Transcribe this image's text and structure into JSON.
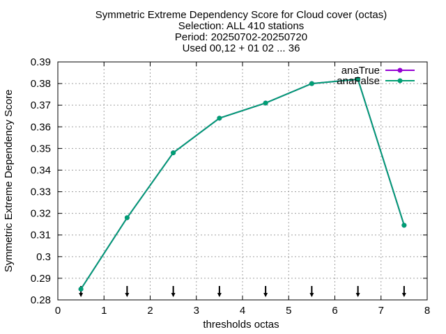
{
  "chart_data": {
    "type": "line",
    "title_lines": [
      "Symmetric Extreme Dependency Score  for Cloud cover (octas)",
      "Selection: ALL    410 stations",
      "Period: 20250702-20250720",
      "Used 00,12 + 01 02 ... 36"
    ],
    "xlabel": "thresholds octas",
    "ylabel": "Symmetric Extreme Dependency Score",
    "xlim": [
      0,
      8
    ],
    "ylim": [
      0.28,
      0.39
    ],
    "x_ticks": [
      "0",
      "1",
      "2",
      "3",
      "4",
      "5",
      "6",
      "7",
      "8"
    ],
    "y_ticks": [
      "0.28",
      "0.29",
      "0.3",
      "0.31",
      "0.32",
      "0.33",
      "0.34",
      "0.35",
      "0.36",
      "0.37",
      "0.38",
      "0.39"
    ],
    "grid": true,
    "legend_position": "top-right",
    "x": [
      0.5,
      1.5,
      2.5,
      3.5,
      4.5,
      5.5,
      6.5,
      7.5
    ],
    "series": [
      {
        "name": "anaTrue",
        "color": "#9400d3",
        "values": [
          0.285,
          0.318,
          0.348,
          0.364,
          0.371,
          0.38,
          0.382,
          0.3145
        ]
      },
      {
        "name": "anaFalse",
        "color": "#009e73",
        "values": [
          0.285,
          0.318,
          0.348,
          0.364,
          0.371,
          0.38,
          0.382,
          0.3145
        ]
      }
    ],
    "markers_x": [
      0.5,
      1.5,
      2.5,
      3.5,
      4.5,
      5.5,
      6.5,
      7.5
    ]
  }
}
